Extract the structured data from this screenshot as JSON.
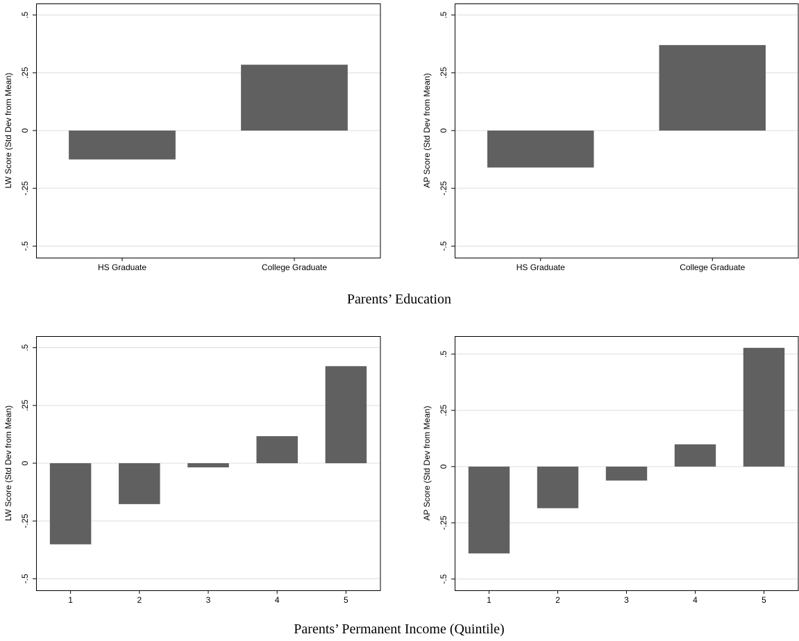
{
  "chart_data": [
    {
      "type": "bar",
      "y_label": "LW Score (Std Dev from Mean)",
      "categories": [
        "HS Graduate",
        "College Graduate"
      ],
      "values": [
        -0.125,
        0.285
      ],
      "color": "#606060",
      "ylim": [
        -0.55,
        0.55
      ],
      "yticks": [
        {
          "value": -0.5,
          "label": "-.5"
        },
        {
          "value": -0.25,
          "label": "-.25"
        },
        0,
        {
          "value": 0.25,
          "label": ".25"
        },
        {
          "value": 0.5,
          "label": ".5"
        }
      ],
      "grid": true
    },
    {
      "type": "bar",
      "y_label": "AP Score (Std Dev from Mean)",
      "categories": [
        "HS Graduate",
        "College Graduate"
      ],
      "values": [
        -0.16,
        0.37
      ],
      "color": "#606060",
      "ylim": [
        -0.55,
        0.55
      ],
      "yticks": [
        {
          "value": -0.5,
          "label": "-.5"
        },
        {
          "value": -0.25,
          "label": "-.25"
        },
        0,
        {
          "value": 0.25,
          "label": ".25"
        },
        {
          "value": 0.5,
          "label": ".5"
        }
      ],
      "grid": true
    },
    {
      "type": "bar",
      "y_label": "LW Score (Std Dev from Mean)",
      "categories": [
        "1",
        "2",
        "3",
        "4",
        "5"
      ],
      "values": [
        -0.351,
        -0.177,
        -0.018,
        0.117,
        0.42
      ],
      "color": "#606060",
      "ylim": [
        -0.55,
        0.55
      ],
      "yticks": [
        {
          "value": -0.5,
          "label": "-.5"
        },
        {
          "value": -0.25,
          "label": "-.25"
        },
        0,
        {
          "value": 0.25,
          "label": ".25"
        },
        {
          "value": 0.5,
          "label": ".5"
        }
      ],
      "grid": true
    },
    {
      "type": "bar",
      "y_label": "AP Score (Std Dev from Mean)",
      "categories": [
        "1",
        "2",
        "3",
        "4",
        "5"
      ],
      "values": [
        -0.386,
        -0.185,
        -0.062,
        0.099,
        0.528
      ],
      "color": "#606060",
      "ylim": [
        -0.55,
        0.58
      ],
      "yticks": [
        {
          "value": -0.5,
          "label": "-.5"
        },
        {
          "value": -0.25,
          "label": "-.25"
        },
        0,
        {
          "value": 0.25,
          "label": ".25"
        },
        {
          "value": 0.5,
          "label": ".5"
        }
      ],
      "grid": true
    }
  ],
  "captions": [
    "Parents’ Education",
    "Parents’ Permanent Income (Quintile)"
  ]
}
